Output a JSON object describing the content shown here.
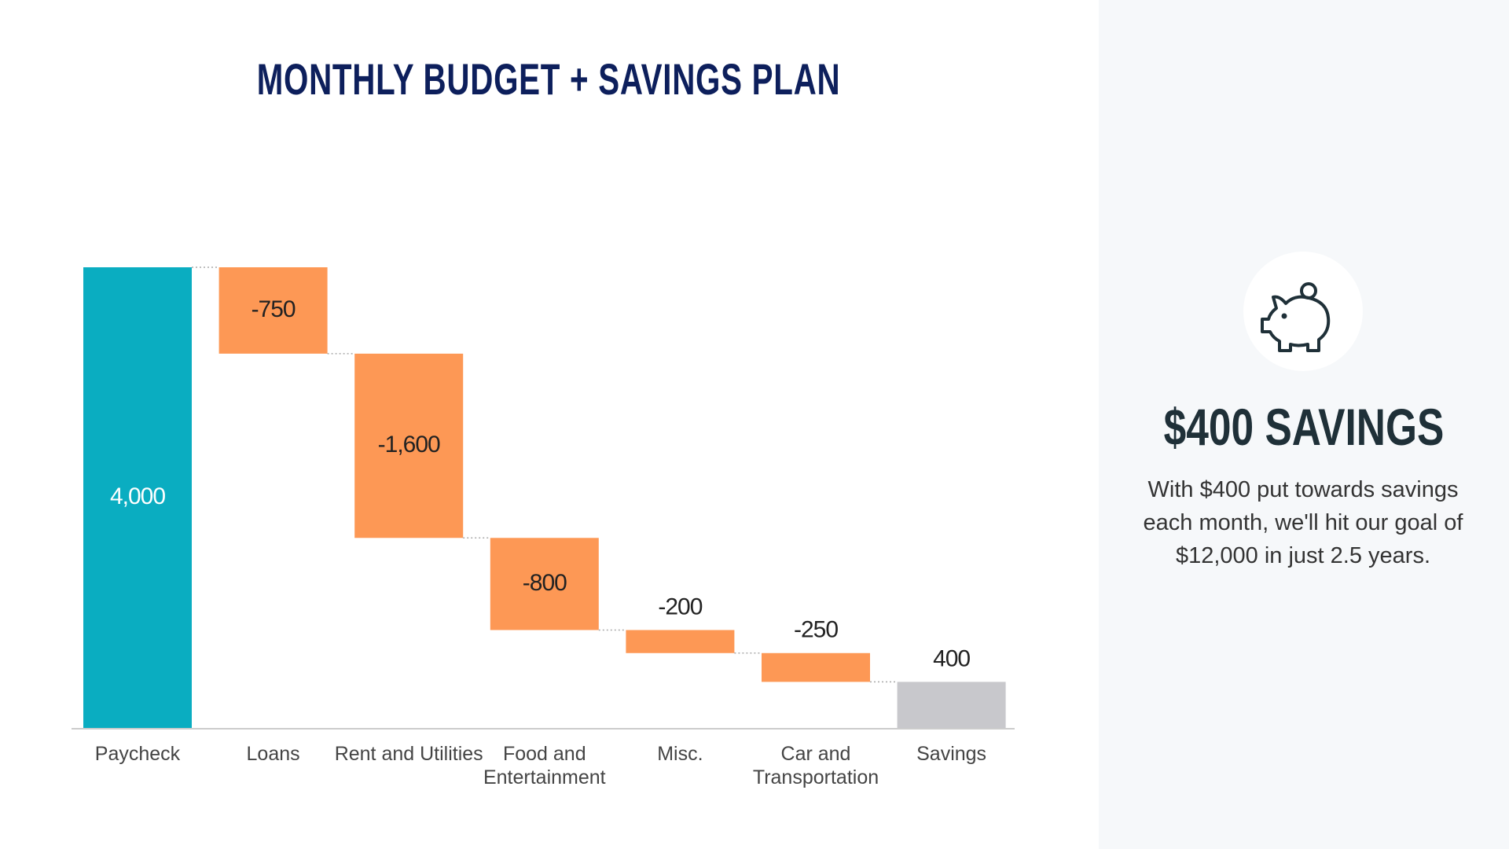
{
  "chart_data": {
    "type": "waterfall",
    "title": "MONTHLY BUDGET + SAVINGS PLAN",
    "categories": [
      "Paycheck",
      "Loans",
      "Rent and Utilities",
      "Food and Entertainment",
      "Misc.",
      "Car and Transportation",
      "Savings"
    ],
    "values": [
      4000,
      -750,
      -1600,
      -800,
      -200,
      -250,
      400
    ],
    "value_labels": [
      "4,000",
      "-750",
      "-1,600",
      "-800",
      "-200",
      "-250",
      "400"
    ],
    "colors": [
      "#0aadc1",
      "#fd9855",
      "#fd9855",
      "#fd9855",
      "#fd9855",
      "#fd9855",
      "#c8c8cc"
    ]
  },
  "side_panel": {
    "heading": "$400 SAVINGS",
    "body": "With $400 put towards savings each month, we'll hit our goal of $12,000 in just 2.5 years."
  }
}
